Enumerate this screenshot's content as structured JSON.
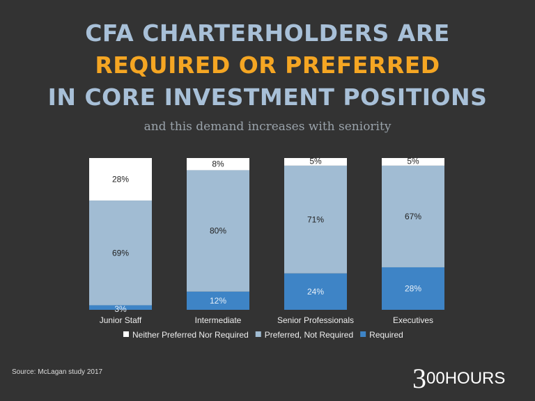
{
  "title": {
    "line1": "CFA CHARTERHOLDERS ARE",
    "line2": "REQUIRED OR PREFERRED",
    "line3": "IN CORE INVESTMENT POSITIONS"
  },
  "subtitle": "and this demand increases with seniority",
  "source": "Source: McLagan study 2017",
  "logo": {
    "big": "3",
    "rest": "00HOURS"
  },
  "colors": {
    "title": "#a8c0d8",
    "highlight": "#f5a623",
    "background": "#333333"
  },
  "chart_data": {
    "type": "bar",
    "stacked": true,
    "categories": [
      "Junior Staff",
      "Intermediate",
      "Senior Professionals",
      "Executives"
    ],
    "series": [
      {
        "name": "Required",
        "values": [
          3,
          12,
          24,
          28
        ],
        "color": "#3e84c6",
        "labels": [
          "3%",
          "12%",
          "24%",
          "28%"
        ]
      },
      {
        "name": "Preferred, Not Required",
        "values": [
          69,
          80,
          71,
          67
        ],
        "color": "#a1bcd3",
        "labels": [
          "69%",
          "80%",
          "71%",
          "67%"
        ]
      },
      {
        "name": "Neither Preferred Nor Required",
        "values": [
          28,
          8,
          5,
          5
        ],
        "color": "#ffffff",
        "labels": [
          "28%",
          "8%",
          "5%",
          "5%"
        ]
      }
    ],
    "legend_order": [
      "Neither Preferred Nor Required",
      "Preferred, Not Required",
      "Required"
    ],
    "legend_position": "bottom",
    "ylim": [
      0,
      100
    ],
    "grid": false
  }
}
